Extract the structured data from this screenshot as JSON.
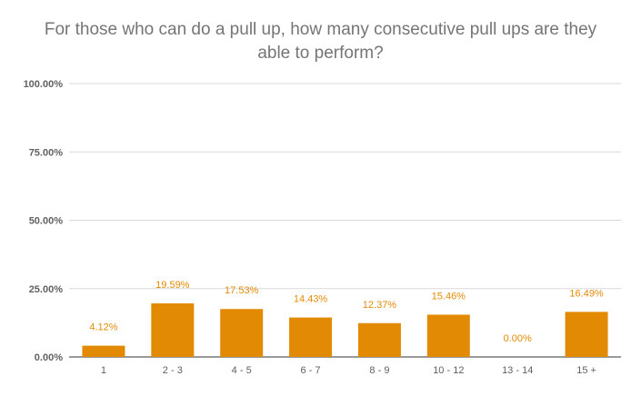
{
  "chart_data": {
    "type": "bar",
    "title_lines": [
      "For those who can do a pull up, how many consecutive pull ups are they",
      "able to perform?"
    ],
    "categories": [
      "1",
      "2 - 3",
      "4 - 5",
      "6 - 7",
      "8 - 9",
      "10 - 12",
      "13 - 14",
      "15 +"
    ],
    "values": [
      4.12,
      19.59,
      17.53,
      14.43,
      12.37,
      15.46,
      0.0,
      16.49
    ],
    "value_labels": [
      "4.12%",
      "19.59%",
      "17.53%",
      "14.43%",
      "12.37%",
      "15.46%",
      "0.00%",
      "16.49%"
    ],
    "ylim": [
      0,
      100
    ],
    "yticks": [
      0,
      25,
      50,
      75,
      100
    ],
    "ytick_labels": [
      "0.00%",
      "25.00%",
      "50.00%",
      "75.00%",
      "100.00%"
    ],
    "grid": true,
    "legend": "none",
    "colors": {
      "bar": "#E38A05",
      "label": "#E38A05",
      "grid": "#D9D9D9",
      "axis_text": "#616161",
      "title": "#757575"
    }
  }
}
